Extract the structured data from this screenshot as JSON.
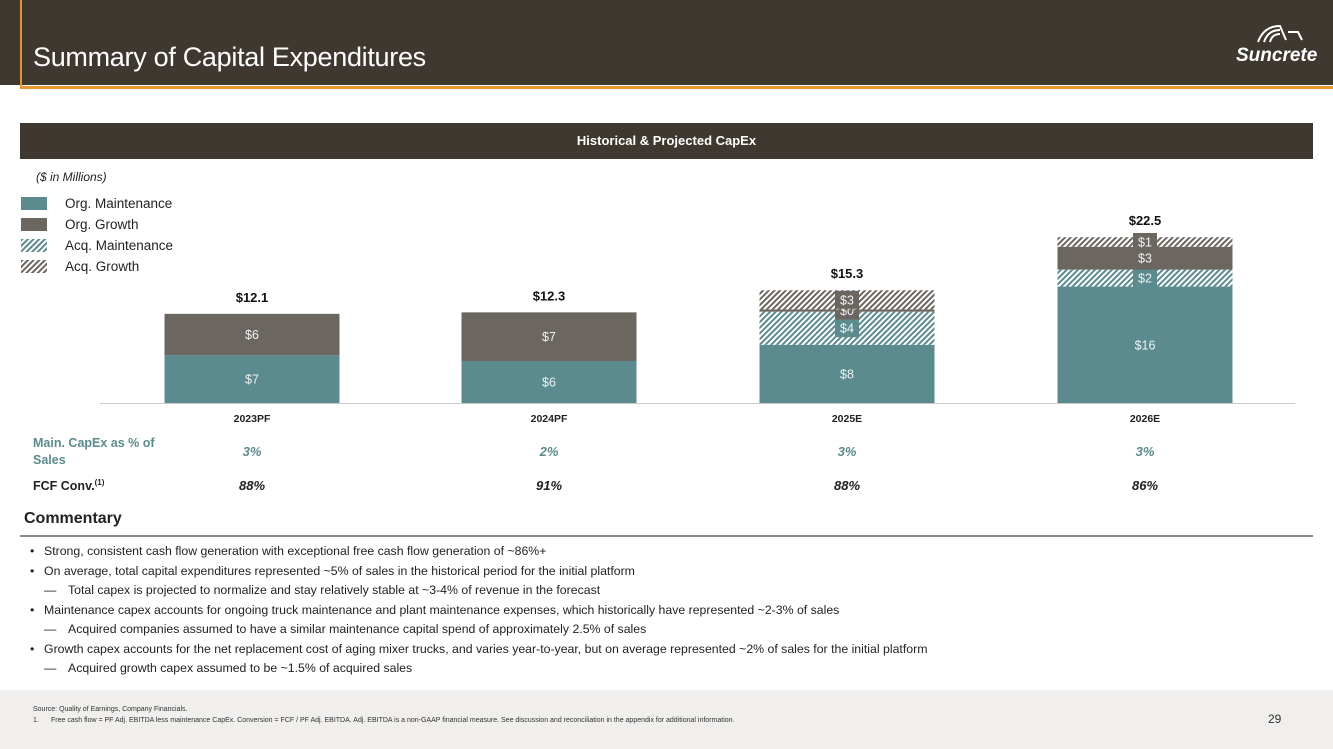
{
  "header": {
    "title": "Summary of Capital Expenditures",
    "logo": "Suncrete"
  },
  "banner": "Historical & Projected CapEx",
  "units": "($ in Millions)",
  "colors": {
    "maint": "#5b8b8e",
    "growth": "#6b6660",
    "header": "#3f3831",
    "accent": "#e8952b"
  },
  "chart_data": {
    "type": "bar",
    "stacked": true,
    "categories": [
      "2023PF",
      "2024PF",
      "2025E",
      "2026E"
    ],
    "series": [
      {
        "name": "Org. Maintenance",
        "values": [
          6.5,
          5.7,
          7.9,
          15.8
        ],
        "labels": [
          "$7",
          "$6",
          "$8",
          "$16"
        ]
      },
      {
        "name": "Acq. Maintenance",
        "values": [
          0,
          0,
          4.5,
          2.3
        ],
        "labels": [
          "",
          "",
          "$4",
          "$2"
        ]
      },
      {
        "name": "Org. Growth",
        "values": [
          5.6,
          6.6,
          0.3,
          3.1
        ],
        "labels": [
          "$6",
          "$7",
          "$0",
          "$3"
        ]
      },
      {
        "name": "Acq. Growth",
        "values": [
          0,
          0,
          2.6,
          1.3
        ],
        "labels": [
          "",
          "",
          "$3",
          "$1"
        ]
      }
    ],
    "totals": [
      "$12.1",
      "$12.3",
      "$15.3",
      "$22.5"
    ],
    "legend": [
      "Org. Maintenance",
      "Org. Growth",
      "Acq. Maintenance",
      "Acq. Growth"
    ],
    "legend_position": "top-left",
    "ylim": [
      0,
      25
    ],
    "grid": false
  },
  "rows": [
    {
      "label": "Main. CapEx as % of Sales",
      "values": [
        "3%",
        "2%",
        "3%",
        "3%"
      ]
    },
    {
      "label": "FCF Conv.",
      "sup": "(1)",
      "values": [
        "88%",
        "91%",
        "88%",
        "86%"
      ]
    }
  ],
  "commentary": {
    "title": "Commentary",
    "items": [
      {
        "level": 1,
        "text": "Strong, consistent cash flow generation with exceptional free cash flow generation of ~86%+"
      },
      {
        "level": 1,
        "text": "On average, total capital expenditures represented ~5% of sales in the historical period for the initial platform"
      },
      {
        "level": 2,
        "text": "Total capex is projected to normalize and stay relatively stable at ~3-4% of revenue in the forecast"
      },
      {
        "level": 1,
        "text": "Maintenance capex accounts for ongoing truck maintenance and plant maintenance expenses, which historically have represented ~2-3% of sales"
      },
      {
        "level": 2,
        "text": "Acquired companies assumed to have a similar maintenance capital spend of approximately 2.5% of sales"
      },
      {
        "level": 1,
        "text": "Growth capex accounts for the net replacement cost of aging mixer trucks, and varies year-to-year, but on average represented ~2% of sales for the initial platform"
      },
      {
        "level": 2,
        "text": "Acquired growth capex assumed to be ~1.5% of acquired sales"
      }
    ]
  },
  "footer": {
    "source": "Source: Quality of Earnings, Company Financials.",
    "fn_num": "1.",
    "footnote": "Free cash flow = PF Adj. EBITDA less maintenance CapEx. Conversion = FCF / PF Adj. EBITDA. Adj. EBITDA is a non-GAAP financial measure. See discussion and reconciliation in the appendix for additional information.",
    "page": "29"
  }
}
